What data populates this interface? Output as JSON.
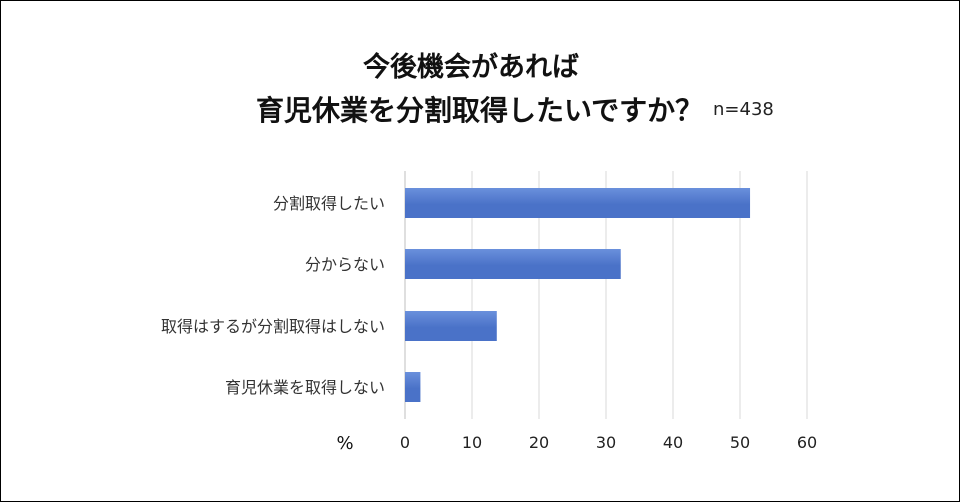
{
  "title_line1": "今後機会があれば",
  "title_line2": "育児休業を分割取得したいですか？",
  "sample_note": "n=438",
  "chart_data": {
    "type": "bar",
    "orientation": "horizontal",
    "title": "今後機会があれば 育児休業を分割取得したいですか？",
    "categories": [
      "分割取得したい",
      "分からない",
      "取得はするが分割取得はしない",
      "育児休業を取得しない"
    ],
    "values": [
      51.5,
      32.2,
      13.7,
      2.3
    ],
    "xlabel": "%",
    "xlim": [
      0,
      60
    ],
    "xticks": [
      0,
      10,
      20,
      30,
      40,
      50,
      60
    ],
    "grid": true,
    "legend": "none",
    "bar_color": "#4a72c8",
    "bar_color_light": "#6a90dc"
  }
}
